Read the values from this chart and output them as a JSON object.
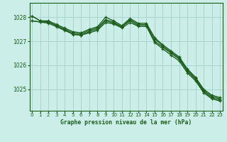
{
  "title": "Graphe pression niveau de la mer (hPa)",
  "bg_color": "#cceee8",
  "grid_color": "#aad4ce",
  "line_color": "#1a5c1a",
  "x_ticks": [
    0,
    1,
    2,
    3,
    4,
    5,
    6,
    7,
    8,
    9,
    10,
    11,
    12,
    13,
    14,
    15,
    16,
    17,
    18,
    19,
    20,
    21,
    22,
    23
  ],
  "y_ticks": [
    1025,
    1026,
    1027,
    1028
  ],
  "ylim": [
    1024.1,
    1028.6
  ],
  "xlim": [
    -0.3,
    23.3
  ],
  "series": [
    [
      1028.05,
      1027.85,
      1027.85,
      1027.7,
      1027.55,
      1027.4,
      1027.35,
      1027.5,
      1027.6,
      1028.0,
      1027.85,
      1027.65,
      1027.95,
      1027.75,
      1027.75,
      1027.15,
      1026.85,
      1026.6,
      1026.35,
      1025.85,
      1025.5,
      1025.0,
      1024.75,
      1024.65
    ],
    [
      1027.85,
      1027.8,
      1027.8,
      1027.65,
      1027.5,
      1027.35,
      1027.3,
      1027.45,
      1027.55,
      1027.9,
      1027.8,
      1027.6,
      1027.9,
      1027.7,
      1027.7,
      1027.1,
      1026.8,
      1026.55,
      1026.3,
      1025.8,
      1025.45,
      1024.95,
      1024.7,
      1024.6
    ],
    [
      1027.85,
      1027.8,
      1027.75,
      1027.6,
      1027.45,
      1027.3,
      1027.25,
      1027.4,
      1027.5,
      1027.85,
      1027.75,
      1027.6,
      1027.85,
      1027.65,
      1027.65,
      1027.0,
      1026.75,
      1026.5,
      1026.25,
      1025.75,
      1025.4,
      1024.9,
      1024.65,
      1024.55
    ],
    [
      1028.05,
      1027.85,
      1027.8,
      1027.65,
      1027.48,
      1027.28,
      1027.25,
      1027.35,
      1027.45,
      1027.78,
      1027.72,
      1027.55,
      1027.78,
      1027.62,
      1027.62,
      1026.95,
      1026.68,
      1026.42,
      1026.18,
      1025.68,
      1025.35,
      1024.85,
      1024.6,
      1024.5
    ]
  ]
}
